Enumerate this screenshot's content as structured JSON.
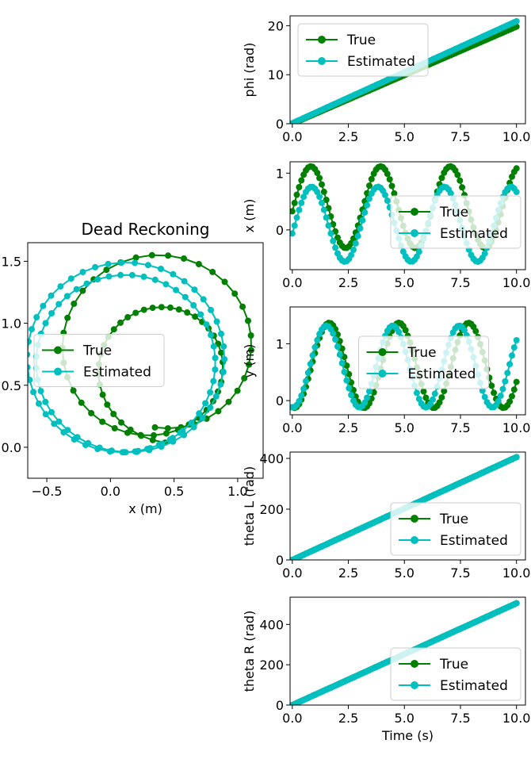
{
  "colors": {
    "true": "#008000",
    "estimated": "#00BFBF",
    "axes": "#000000",
    "legend_edge": "#cccccc"
  },
  "chart_data": [
    {
      "id": "dead-reckoning",
      "type": "line",
      "title": "Dead Reckoning",
      "xlabel": "x (m)",
      "ylabel": "",
      "xlim": [
        -0.65,
        1.2
      ],
      "ylim": [
        -0.25,
        1.65
      ],
      "xticks": [
        -0.5,
        0.0,
        0.5,
        1.0
      ],
      "xtick_labels": [
        "−0.5",
        "0.0",
        "0.5",
        "1.0"
      ],
      "yticks": [
        0.0,
        0.5,
        1.0,
        1.5
      ],
      "ytick_labels": [
        "0.0",
        "0.5",
        "1.0",
        "1.5"
      ],
      "legend": {
        "placement": "center-left",
        "entries": [
          "True",
          "Estimated"
        ]
      },
      "series": [
        {
          "name": "True",
          "color": "#008000",
          "gen": "spiral_true",
          "points": 80
        },
        {
          "name": "Estimated",
          "color": "#00BFBF",
          "gen": "spiral_est",
          "points": 100
        }
      ]
    },
    {
      "id": "phi",
      "type": "line",
      "xlabel": "",
      "ylabel": "phi (rad)",
      "xlim": [
        -0.1,
        10.4
      ],
      "ylim": [
        0,
        22
      ],
      "xticks": [
        0.0,
        2.5,
        5.0,
        7.5,
        10.0
      ],
      "xtick_labels": [
        "0.0",
        "2.5",
        "5.0",
        "7.5",
        "10.0"
      ],
      "yticks": [
        0,
        10,
        20
      ],
      "ytick_labels": [
        "0",
        "10",
        "20"
      ],
      "legend": {
        "placement": "upper-left",
        "entries": [
          "True",
          "Estimated"
        ]
      },
      "series": [
        {
          "name": "True",
          "color": "#008000",
          "gen": "phi_true",
          "points": 100
        },
        {
          "name": "Estimated",
          "color": "#00BFBF",
          "gen": "phi_est",
          "points": 100
        }
      ]
    },
    {
      "id": "x",
      "type": "line",
      "xlabel": "",
      "ylabel": "x (m)",
      "xlim": [
        -0.1,
        10.4
      ],
      "ylim": [
        -0.7,
        1.2
      ],
      "xticks": [
        0.0,
        2.5,
        5.0,
        7.5,
        10.0
      ],
      "xtick_labels": [
        "0.0",
        "2.5",
        "5.0",
        "7.5",
        "10.0"
      ],
      "yticks": [
        0,
        1
      ],
      "ytick_labels": [
        "0",
        "1"
      ],
      "legend": {
        "placement": "center-right",
        "entries": [
          "True",
          "Estimated"
        ]
      },
      "series": [
        {
          "name": "True",
          "color": "#008000",
          "gen": "x_true",
          "points": 100
        },
        {
          "name": "Estimated",
          "color": "#00BFBF",
          "gen": "x_est",
          "points": 100
        }
      ]
    },
    {
      "id": "y",
      "type": "line",
      "xlabel": "",
      "ylabel": "y (m)",
      "xlim": [
        -0.1,
        10.4
      ],
      "ylim": [
        -0.25,
        1.65
      ],
      "xticks": [
        0.0,
        2.5,
        5.0,
        7.5,
        10.0
      ],
      "xtick_labels": [
        "0.0",
        "2.5",
        "5.0",
        "7.5",
        "10.0"
      ],
      "yticks": [
        0,
        1
      ],
      "ytick_labels": [
        "0",
        "1"
      ],
      "legend": {
        "placement": "center",
        "entries": [
          "True",
          "Estimated"
        ]
      },
      "series": [
        {
          "name": "True",
          "color": "#008000",
          "gen": "y_true",
          "points": 100
        },
        {
          "name": "Estimated",
          "color": "#00BFBF",
          "gen": "y_est",
          "points": 100
        }
      ]
    },
    {
      "id": "thetaL",
      "type": "line",
      "xlabel": "",
      "ylabel": "theta L (rad)",
      "xlim": [
        -0.1,
        10.4
      ],
      "ylim": [
        0,
        425
      ],
      "xticks": [
        0.0,
        2.5,
        5.0,
        7.5,
        10.0
      ],
      "xtick_labels": [
        "0.0",
        "2.5",
        "5.0",
        "7.5",
        "10.0"
      ],
      "yticks": [
        0,
        200,
        400
      ],
      "ytick_labels": [
        "0",
        "200",
        "400"
      ],
      "legend": {
        "placement": "lower-right",
        "entries": [
          "True",
          "Estimated"
        ]
      },
      "series": [
        {
          "name": "True",
          "color": "#008000",
          "gen": "lin",
          "slope": 40.5,
          "points": 100
        },
        {
          "name": "Estimated",
          "color": "#00BFBF",
          "gen": "lin",
          "slope": 40.5,
          "points": 100
        }
      ]
    },
    {
      "id": "thetaR",
      "type": "line",
      "xlabel": "Time (s)",
      "ylabel": "theta R (rad)",
      "xlim": [
        -0.1,
        10.4
      ],
      "ylim": [
        0,
        535
      ],
      "xticks": [
        0.0,
        2.5,
        5.0,
        7.5,
        10.0
      ],
      "xtick_labels": [
        "0.0",
        "2.5",
        "5.0",
        "7.5",
        "10.0"
      ],
      "yticks": [
        0,
        200,
        400
      ],
      "ytick_labels": [
        "0",
        "200",
        "400"
      ],
      "legend": {
        "placement": "lower-right",
        "entries": [
          "True",
          "Estimated"
        ]
      },
      "series": [
        {
          "name": "True",
          "color": "#008000",
          "gen": "lin",
          "slope": 50.5,
          "points": 100
        },
        {
          "name": "Estimated",
          "color": "#00BFBF",
          "gen": "lin",
          "slope": 50.5,
          "points": 100
        }
      ]
    }
  ]
}
